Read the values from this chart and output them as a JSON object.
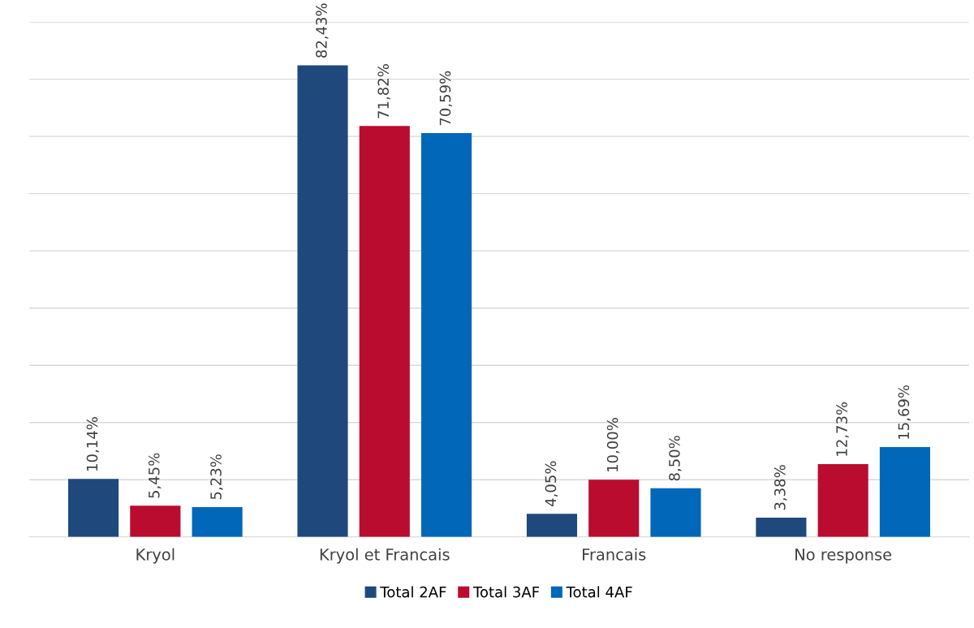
{
  "chart_data": {
    "type": "bar",
    "categories": [
      "Kryol",
      "Kryol et Francais",
      "Francais",
      "No response"
    ],
    "series": [
      {
        "name": "Total 2AF",
        "color": "#1f497d",
        "values": [
          10.14,
          82.43,
          4.05,
          3.38
        ],
        "value_labels": [
          "10,14%",
          "82,43%",
          "4,05%",
          "3,38%"
        ]
      },
      {
        "name": "Total 3AF",
        "color": "#ba0c2f",
        "values": [
          5.45,
          71.82,
          10.0,
          12.73
        ],
        "value_labels": [
          "5,45%",
          "71,82%",
          "10,00%",
          "12,73%"
        ]
      },
      {
        "name": "Total 4AF",
        "color": "#0067b9",
        "values": [
          5.23,
          70.59,
          8.5,
          15.69
        ],
        "value_labels": [
          "5,23%",
          "70,59%",
          "8,50%",
          "15,69%"
        ]
      }
    ],
    "ylim": [
      0,
      90
    ],
    "yticks": [
      {
        "value": 0,
        "label": null
      },
      {
        "value": 10,
        "label": null
      },
      {
        "value": 20,
        "label": null
      },
      {
        "value": 30,
        "label": null
      },
      {
        "value": 40,
        "label": null
      },
      {
        "value": 50,
        "label": null
      },
      {
        "value": 60,
        "label": null
      },
      {
        "value": 70,
        "label": null
      },
      {
        "value": 80,
        "label": null
      },
      {
        "value": 90,
        "label": null
      }
    ],
    "tick_labels": "x",
    "grid": "y",
    "legend": "bottom"
  }
}
